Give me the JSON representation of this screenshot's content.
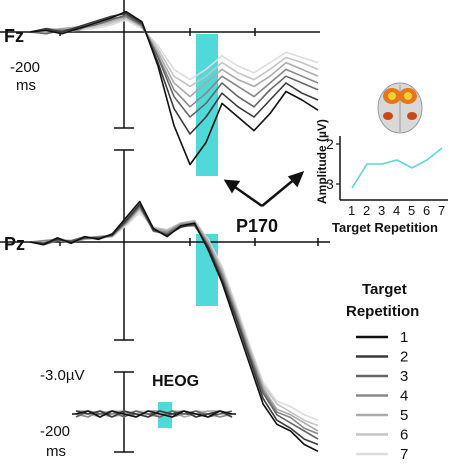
{
  "chart_data": [
    {
      "type": "line",
      "panel": "Fz",
      "channel_label": "Fz",
      "time_label": "-200",
      "time_unit": "ms",
      "highlight": "P170 window",
      "series": [
        {
          "name": "1",
          "color": "#111111",
          "values": [
            0,
            1,
            -1,
            2,
            5,
            8,
            12,
            6,
            -20,
            -55,
            -78,
            -65,
            -42,
            -50,
            -58,
            -48,
            -35,
            -40,
            -46
          ]
        },
        {
          "name": "2",
          "color": "#3a3a3a",
          "values": [
            0,
            2,
            0,
            3,
            6,
            9,
            11,
            5,
            -18,
            -45,
            -60,
            -50,
            -36,
            -44,
            -50,
            -40,
            -30,
            -36,
            -40
          ]
        },
        {
          "name": "3",
          "color": "#666666",
          "values": [
            0,
            -1,
            1,
            2,
            4,
            7,
            10,
            4,
            -15,
            -38,
            -50,
            -42,
            -30,
            -38,
            -44,
            -34,
            -26,
            -30,
            -34
          ]
        },
        {
          "name": "4",
          "color": "#888888",
          "values": [
            0,
            2,
            1,
            1,
            5,
            8,
            9,
            4,
            -14,
            -34,
            -44,
            -36,
            -26,
            -32,
            -38,
            -30,
            -22,
            -26,
            -30
          ]
        },
        {
          "name": "5",
          "color": "#aaaaaa",
          "values": [
            0,
            1,
            2,
            3,
            4,
            6,
            9,
            3,
            -12,
            -30,
            -38,
            -30,
            -22,
            -28,
            -32,
            -26,
            -18,
            -22,
            -26
          ]
        },
        {
          "name": "6",
          "color": "#c4c4c4",
          "values": [
            0,
            0,
            1,
            2,
            3,
            5,
            8,
            3,
            -10,
            -26,
            -32,
            -26,
            -18,
            -24,
            -28,
            -22,
            -15,
            -18,
            -22
          ]
        },
        {
          "name": "7",
          "color": "#dcdcdc",
          "values": [
            0,
            1,
            0,
            1,
            2,
            4,
            7,
            2,
            -8,
            -22,
            -28,
            -22,
            -14,
            -20,
            -24,
            -18,
            -12,
            -15,
            -18
          ]
        }
      ]
    },
    {
      "type": "line",
      "panel": "Pz",
      "channel_label": "Pz",
      "series": [
        {
          "name": "1",
          "color": "#111111",
          "values": [
            0,
            -2,
            3,
            -1,
            4,
            2,
            6,
            18,
            30,
            10,
            4,
            12,
            14,
            -6,
            -30,
            -60,
            -90,
            -120,
            -135,
            -140,
            -150,
            -155
          ]
        },
        {
          "name": "2",
          "color": "#3a3a3a",
          "values": [
            0,
            -1,
            2,
            0,
            3,
            3,
            5,
            16,
            28,
            9,
            5,
            11,
            13,
            -4,
            -28,
            -56,
            -86,
            -116,
            -132,
            -138,
            -146,
            -150
          ]
        },
        {
          "name": "3",
          "color": "#666666",
          "values": [
            0,
            -2,
            1,
            1,
            4,
            2,
            6,
            15,
            27,
            8,
            6,
            12,
            12,
            -3,
            -26,
            -54,
            -84,
            -112,
            -128,
            -134,
            -140,
            -146
          ]
        },
        {
          "name": "4",
          "color": "#888888",
          "values": [
            0,
            1,
            2,
            -1,
            3,
            4,
            5,
            14,
            26,
            9,
            7,
            13,
            14,
            -2,
            -24,
            -52,
            -82,
            -110,
            -126,
            -130,
            -138,
            -142
          ]
        },
        {
          "name": "5",
          "color": "#aaaaaa",
          "values": [
            0,
            -1,
            3,
            0,
            2,
            3,
            4,
            14,
            25,
            10,
            8,
            14,
            15,
            0,
            -22,
            -50,
            -80,
            -108,
            -124,
            -128,
            -134,
            -140
          ]
        },
        {
          "name": "6",
          "color": "#c4c4c4",
          "values": [
            0,
            0,
            2,
            1,
            3,
            2,
            5,
            13,
            24,
            11,
            9,
            14,
            16,
            1,
            -20,
            -48,
            -78,
            -106,
            -120,
            -126,
            -132,
            -136
          ]
        },
        {
          "name": "7",
          "color": "#dcdcdc",
          "values": [
            0,
            1,
            1,
            0,
            2,
            3,
            4,
            12,
            22,
            10,
            9,
            13,
            15,
            2,
            -18,
            -46,
            -76,
            -104,
            -118,
            -122,
            -128,
            -132
          ]
        }
      ]
    },
    {
      "type": "line",
      "panel": "HEOG",
      "channel_label": "HEOG",
      "amplitude_label": "-3.0µV",
      "time_label": "-200",
      "time_unit": "ms",
      "series": [
        {
          "name": "1",
          "color": "#111111",
          "values": [
            0,
            1,
            -1,
            1,
            0,
            -1,
            1,
            0,
            -1,
            1,
            0,
            -1,
            1,
            0
          ]
        },
        {
          "name": "2",
          "color": "#3a3a3a",
          "values": [
            1,
            0,
            1,
            -1,
            1,
            0,
            -1,
            1,
            0,
            1,
            -1,
            0,
            1,
            -1
          ]
        },
        {
          "name": "3",
          "color": "#666666",
          "values": [
            -1,
            1,
            0,
            1,
            -1,
            1,
            0,
            -1,
            1,
            0,
            1,
            -1,
            0,
            1
          ]
        },
        {
          "name": "4",
          "color": "#888888",
          "values": [
            0,
            -1,
            1,
            0,
            1,
            -1,
            1,
            1,
            -1,
            0,
            1,
            0,
            -1,
            0
          ]
        },
        {
          "name": "5",
          "color": "#aaaaaa",
          "values": [
            1,
            1,
            0,
            -1,
            0,
            1,
            -1,
            0,
            1,
            -1,
            0,
            1,
            1,
            -1
          ]
        },
        {
          "name": "6",
          "color": "#c4c4c4",
          "values": [
            0,
            0,
            -1,
            1,
            1,
            0,
            0,
            -1,
            1,
            1,
            -1,
            0,
            1,
            0
          ]
        },
        {
          "name": "7",
          "color": "#dcdcdc",
          "values": [
            -1,
            0,
            1,
            0,
            -1,
            1,
            1,
            0,
            -1,
            0,
            1,
            1,
            0,
            -1
          ]
        }
      ]
    },
    {
      "type": "line",
      "panel": "inset",
      "xlabel": "Target Repetition",
      "ylabel": "Amplitude (µV)",
      "x": [
        1,
        2,
        3,
        4,
        5,
        6,
        7
      ],
      "x_ticks": [
        "1",
        "2",
        "3",
        "4",
        "5",
        "6",
        "7"
      ],
      "y_ticks": [
        "2",
        "3"
      ],
      "ylim": [
        1.8,
        3.3
      ],
      "y_inverted": true,
      "color": "#5ad8d8",
      "values": [
        3.1,
        2.5,
        2.5,
        2.4,
        2.6,
        2.4,
        2.1
      ]
    }
  ],
  "annotation": {
    "p170_label": "P170",
    "highlight_color": "#4fd9d9"
  },
  "legend": {
    "title_line1": "Target",
    "title_line2": "Repetition",
    "entries": [
      {
        "label": "1",
        "color": "#111111"
      },
      {
        "label": "2",
        "color": "#3a3a3a"
      },
      {
        "label": "3",
        "color": "#666666"
      },
      {
        "label": "4",
        "color": "#888888"
      },
      {
        "label": "5",
        "color": "#aaaaaa"
      },
      {
        "label": "6",
        "color": "#c4c4c4"
      },
      {
        "label": "7",
        "color": "#dcdcdc"
      }
    ]
  },
  "brain_icon": "brain-activation-icon"
}
